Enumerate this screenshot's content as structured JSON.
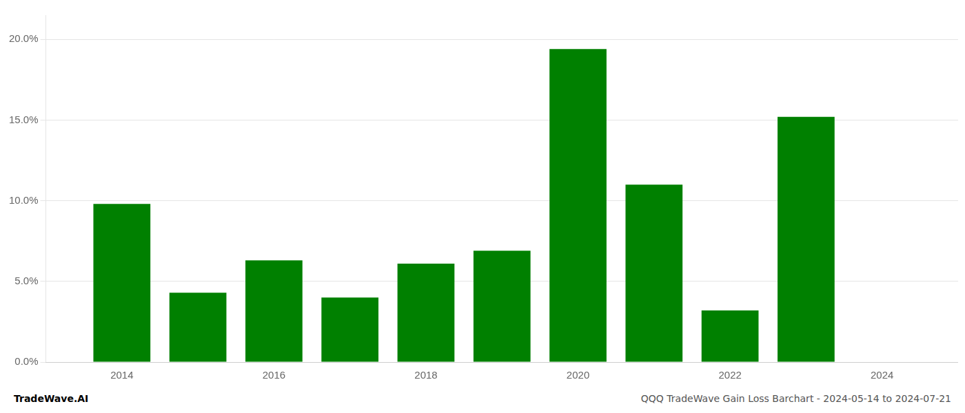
{
  "chart_data": {
    "type": "bar",
    "x": [
      2014,
      2015,
      2016,
      2017,
      2018,
      2019,
      2020,
      2021,
      2022,
      2023
    ],
    "values": [
      0.098,
      0.043,
      0.063,
      0.04,
      0.061,
      0.069,
      0.194,
      0.11,
      0.032,
      0.152
    ],
    "color": "#008000",
    "xlim": [
      2013.0,
      2025.0
    ],
    "xticks": [
      2014,
      2016,
      2018,
      2020,
      2022,
      2024
    ],
    "ylim": [
      0,
      0.215
    ],
    "yticks": [
      {
        "value": 0.0,
        "label": "0.0%"
      },
      {
        "value": 0.05,
        "label": "5.0%"
      },
      {
        "value": 0.1,
        "label": "10.0%"
      },
      {
        "value": 0.15,
        "label": "15.0%"
      },
      {
        "value": 0.2,
        "label": "20.0%"
      }
    ],
    "grid": "y",
    "annotations": [
      "TradeWave.AI",
      "QQQ TradeWave Gain Loss Barchart - 2024-05-14 to 2024-07-21"
    ]
  }
}
